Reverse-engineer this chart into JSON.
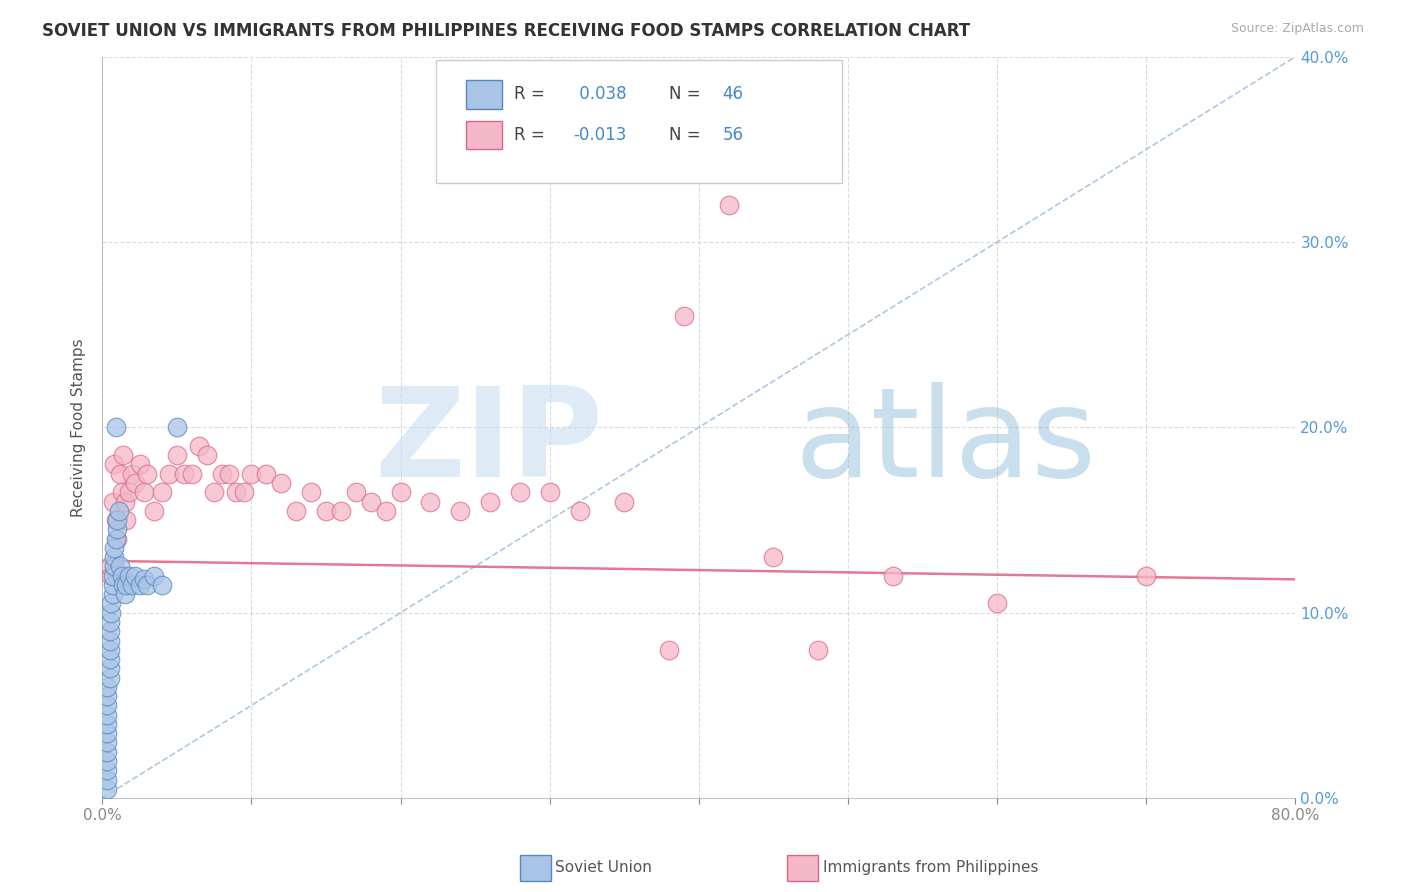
{
  "title": "SOVIET UNION VS IMMIGRANTS FROM PHILIPPINES RECEIVING FOOD STAMPS CORRELATION CHART",
  "source": "Source: ZipAtlas.com",
  "ylabel": "Receiving Food Stamps",
  "watermark_zip": "ZIP",
  "watermark_atlas": "atlas",
  "xlim": [
    0.0,
    0.8
  ],
  "ylim": [
    0.0,
    0.4
  ],
  "xticks": [
    0.0,
    0.1,
    0.2,
    0.3,
    0.4,
    0.5,
    0.6,
    0.7,
    0.8
  ],
  "yticks": [
    0.0,
    0.1,
    0.2,
    0.3,
    0.4
  ],
  "xtick_labels": [
    "0.0%",
    "",
    "",
    "",
    "",
    "",
    "",
    "",
    "80.0%"
  ],
  "ytick_labels_right": [
    "0.0%",
    "10.0%",
    "20.0%",
    "30.0%",
    "40.0%"
  ],
  "soviet_R": 0.038,
  "soviet_N": 46,
  "phil_R": -0.013,
  "phil_N": 56,
  "soviet_color": "#aac4e8",
  "phil_color": "#f4b8c8",
  "soviet_edge_color": "#5588bb",
  "phil_edge_color": "#dd6688",
  "soviet_line_color": "#8ab0d8",
  "phil_line_color": "#e06080",
  "tick_color_right": "#5599dd",
  "tick_color_bottom": "#888888",
  "soviet_x": [
    0.003,
    0.003,
    0.003,
    0.003,
    0.003,
    0.003,
    0.003,
    0.003,
    0.003,
    0.003,
    0.003,
    0.003,
    0.005,
    0.005,
    0.005,
    0.005,
    0.005,
    0.005,
    0.005,
    0.006,
    0.006,
    0.007,
    0.007,
    0.007,
    0.008,
    0.008,
    0.008,
    0.009,
    0.009,
    0.01,
    0.01,
    0.011,
    0.012,
    0.013,
    0.014,
    0.015,
    0.016,
    0.018,
    0.02,
    0.022,
    0.025,
    0.028,
    0.03,
    0.035,
    0.04,
    0.05
  ],
  "soviet_y": [
    0.005,
    0.01,
    0.015,
    0.02,
    0.025,
    0.03,
    0.035,
    0.04,
    0.045,
    0.05,
    0.055,
    0.06,
    0.065,
    0.07,
    0.075,
    0.08,
    0.085,
    0.09,
    0.095,
    0.1,
    0.105,
    0.11,
    0.115,
    0.12,
    0.125,
    0.13,
    0.135,
    0.14,
    0.2,
    0.145,
    0.15,
    0.155,
    0.125,
    0.12,
    0.115,
    0.11,
    0.115,
    0.12,
    0.115,
    0.12,
    0.115,
    0.118,
    0.115,
    0.12,
    0.115,
    0.2
  ],
  "phil_x": [
    0.005,
    0.006,
    0.007,
    0.008,
    0.009,
    0.01,
    0.012,
    0.013,
    0.014,
    0.015,
    0.016,
    0.018,
    0.02,
    0.022,
    0.025,
    0.028,
    0.03,
    0.035,
    0.04,
    0.045,
    0.05,
    0.055,
    0.06,
    0.065,
    0.07,
    0.075,
    0.08,
    0.085,
    0.09,
    0.095,
    0.1,
    0.11,
    0.12,
    0.13,
    0.14,
    0.15,
    0.16,
    0.17,
    0.18,
    0.19,
    0.2,
    0.22,
    0.24,
    0.26,
    0.28,
    0.3,
    0.32,
    0.35,
    0.38,
    0.39,
    0.42,
    0.45,
    0.48,
    0.53,
    0.6,
    0.7
  ],
  "phil_y": [
    0.125,
    0.12,
    0.16,
    0.18,
    0.15,
    0.14,
    0.175,
    0.165,
    0.185,
    0.16,
    0.15,
    0.165,
    0.175,
    0.17,
    0.18,
    0.165,
    0.175,
    0.155,
    0.165,
    0.175,
    0.185,
    0.175,
    0.175,
    0.19,
    0.185,
    0.165,
    0.175,
    0.175,
    0.165,
    0.165,
    0.175,
    0.175,
    0.17,
    0.155,
    0.165,
    0.155,
    0.155,
    0.165,
    0.16,
    0.155,
    0.165,
    0.16,
    0.155,
    0.16,
    0.165,
    0.165,
    0.155,
    0.16,
    0.08,
    0.26,
    0.32,
    0.13,
    0.08,
    0.12,
    0.105,
    0.12
  ],
  "phil_trend_y": 0.125,
  "legend_label_soviet": "Soviet Union",
  "legend_label_phil": "Immigrants from Philippines",
  "title_fontsize": 12,
  "axis_label_fontsize": 11,
  "tick_fontsize": 11,
  "legend_fontsize": 12
}
